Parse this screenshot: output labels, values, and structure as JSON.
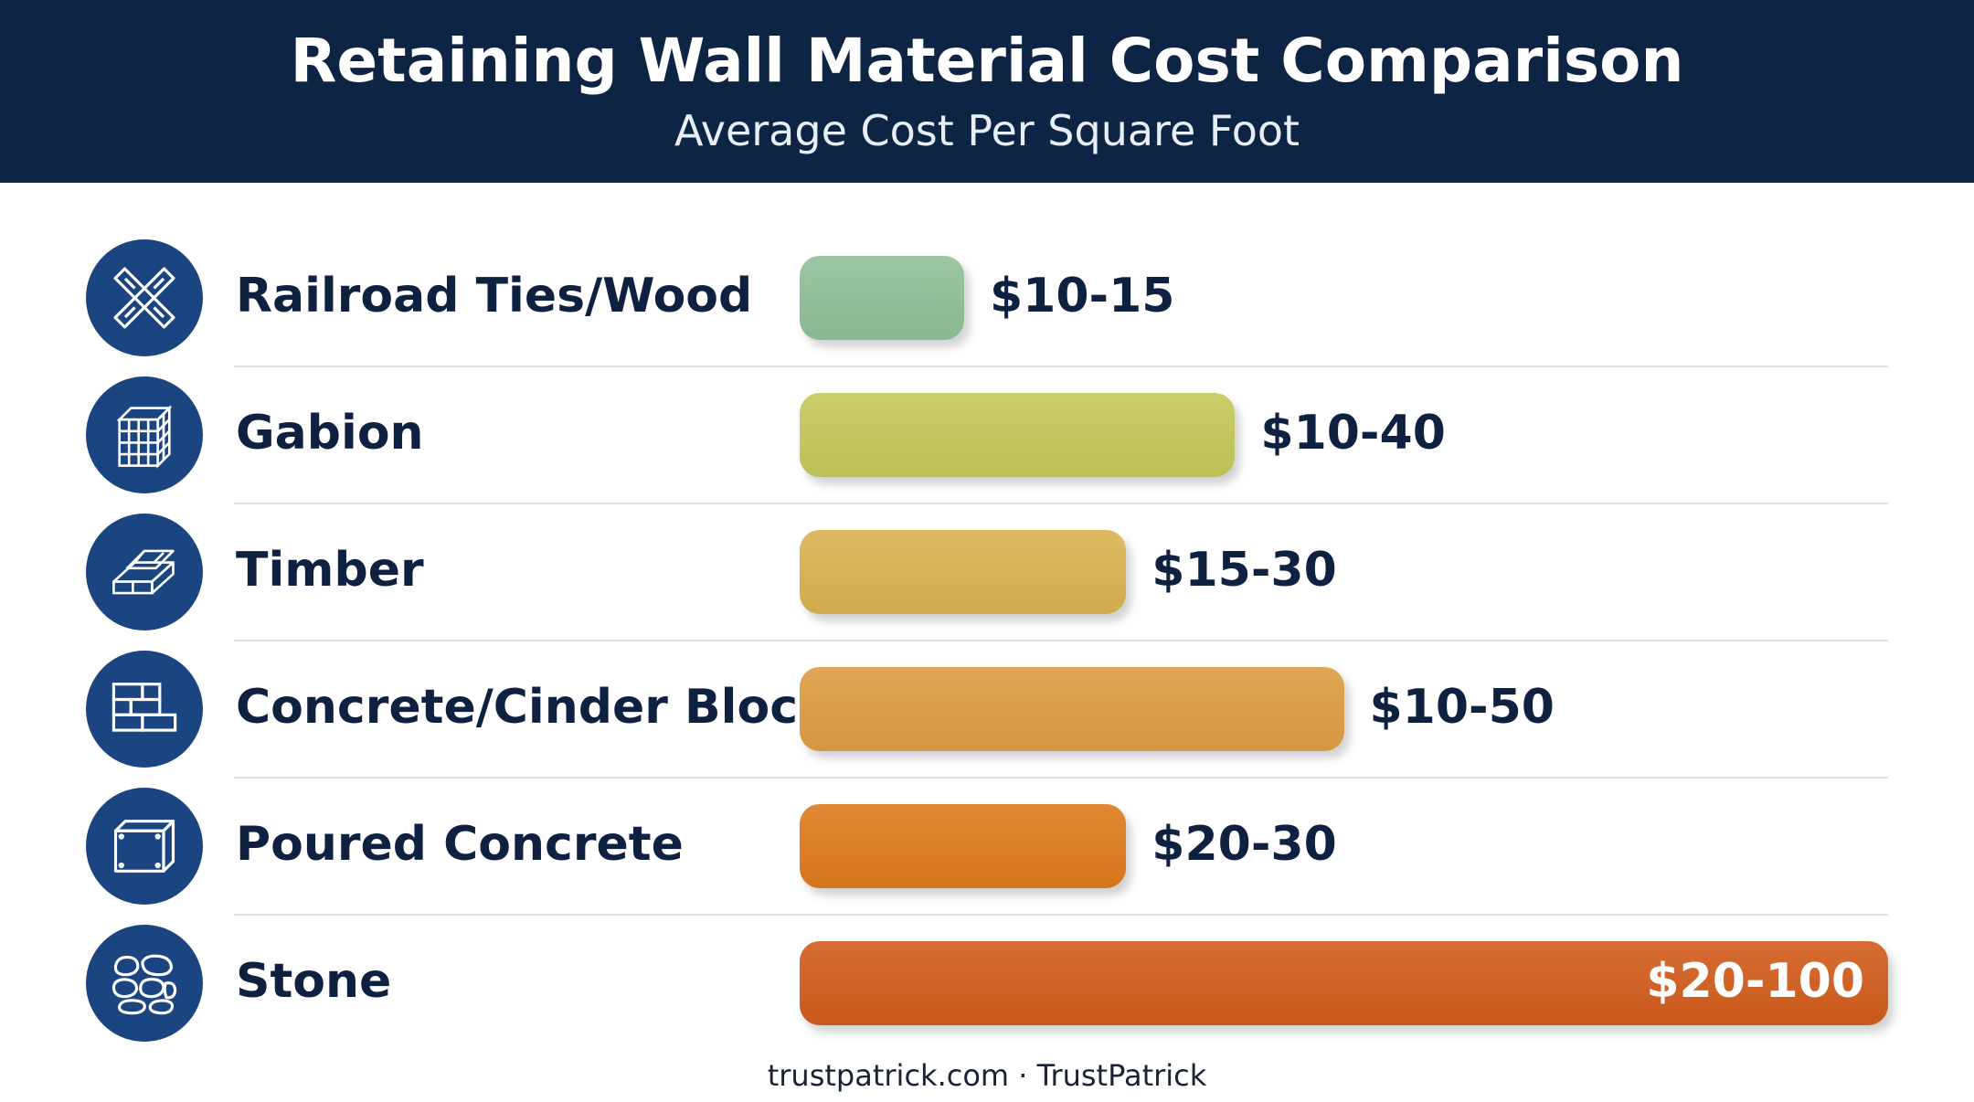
{
  "header": {
    "title": "Retaining Wall Material Cost Comparison",
    "subtitle": "Average Cost Per Square Foot"
  },
  "colors": {
    "header_bg": "#0e2444",
    "icon_bg": "#1b4580",
    "text_dark": "#0f2140"
  },
  "chart_data": {
    "type": "bar",
    "orientation": "horizontal",
    "title": "Retaining Wall Material Cost Comparison",
    "subtitle": "Average Cost Per Square Foot",
    "xlim": [
      0,
      100
    ],
    "grid": false,
    "legend": "none",
    "categories": [
      "Railroad Ties/Wood",
      "Gabion",
      "Timber",
      "Concrete/Cinder Block",
      "Poured Concrete",
      "Stone"
    ],
    "ranges": [
      [
        10,
        15
      ],
      [
        10,
        40
      ],
      [
        15,
        30
      ],
      [
        10,
        50
      ],
      [
        20,
        30
      ],
      [
        20,
        100
      ]
    ],
    "data_labels": [
      "$10-15",
      "$10-40",
      "$15-30",
      "$10-50",
      "$20-30",
      "$20-100"
    ],
    "bar_colors": [
      "#8fbf98",
      "#c5c75a",
      "#d9b250",
      "#dd9c42",
      "#de7a1d",
      "#d15c1c"
    ],
    "icons": [
      "crossed-ties-icon",
      "gabion-cage-icon",
      "timber-stack-icon",
      "brick-block-icon",
      "concrete-slab-icon",
      "stones-icon"
    ]
  },
  "footer": {
    "text": "trustpatrick.com · TrustPatrick"
  }
}
